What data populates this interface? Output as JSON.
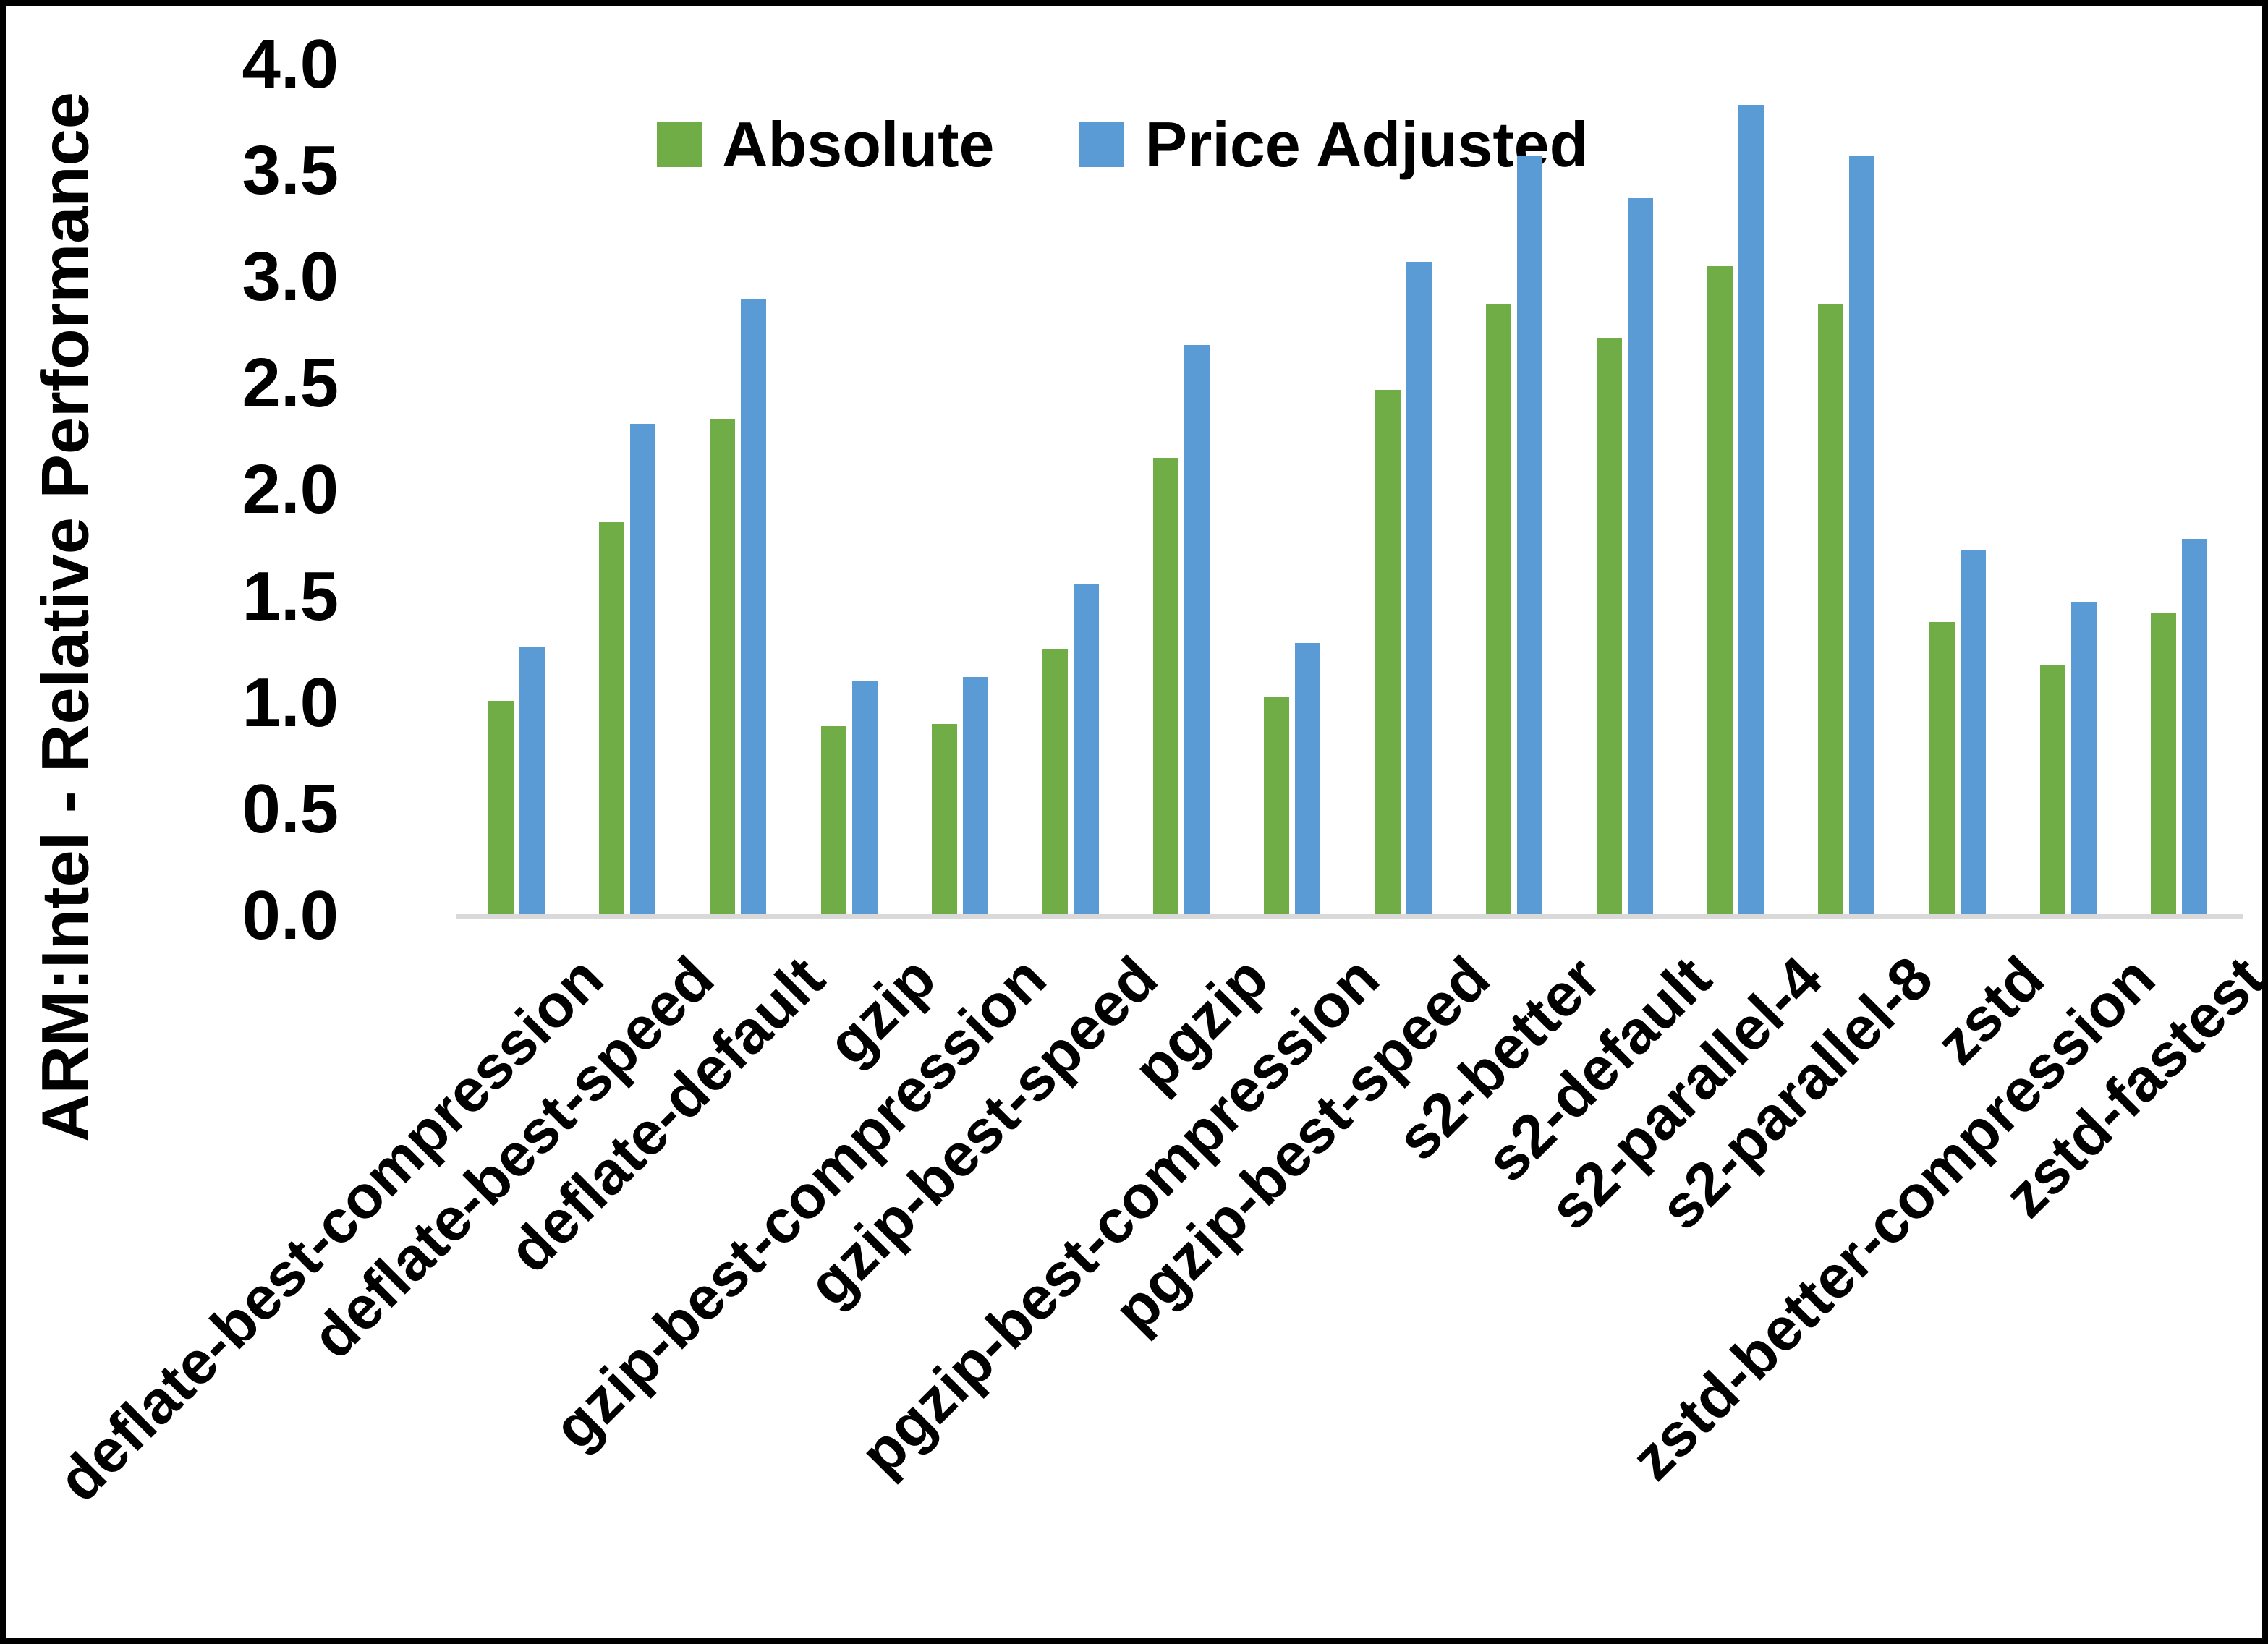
{
  "chart_data": {
    "type": "bar",
    "title": "",
    "xlabel": "",
    "ylabel": "ARM:Intel - Relative Performance",
    "ylim": [
      0.0,
      4.0
    ],
    "ytick_step": 0.5,
    "ytick_labels": [
      "0.0",
      "0.5",
      "1.0",
      "1.5",
      "2.0",
      "2.5",
      "3.0",
      "3.5",
      "4.0"
    ],
    "grid": false,
    "legend_position": "top-center",
    "axis_line_color": "#d9d9d9",
    "categories": [
      "deflate-best-compression",
      "deflate-best-speed",
      "deflate-default",
      "gzip",
      "gzip-best-compression",
      "gzip-best-speed",
      "pgzip",
      "pgzip-best-compression",
      "pgzip-best-speed",
      "s2-better",
      "s2-default",
      "s2-parallel-4",
      "s2-parallel-8",
      "zstd",
      "zstd-better-compression",
      "zstd-fastest"
    ],
    "series": [
      {
        "name": "Absolute",
        "color": "#70AD47",
        "values": [
          1.01,
          1.85,
          2.33,
          0.89,
          0.9,
          1.25,
          2.15,
          1.03,
          2.47,
          2.87,
          2.71,
          3.05,
          2.87,
          1.38,
          1.18,
          1.42
        ]
      },
      {
        "name": "Price Adjusted",
        "color": "#5B9BD5",
        "values": [
          1.26,
          2.31,
          2.9,
          1.1,
          1.12,
          1.56,
          2.68,
          1.28,
          3.07,
          3.57,
          3.37,
          3.81,
          3.57,
          1.72,
          1.47,
          1.77
        ]
      }
    ]
  }
}
